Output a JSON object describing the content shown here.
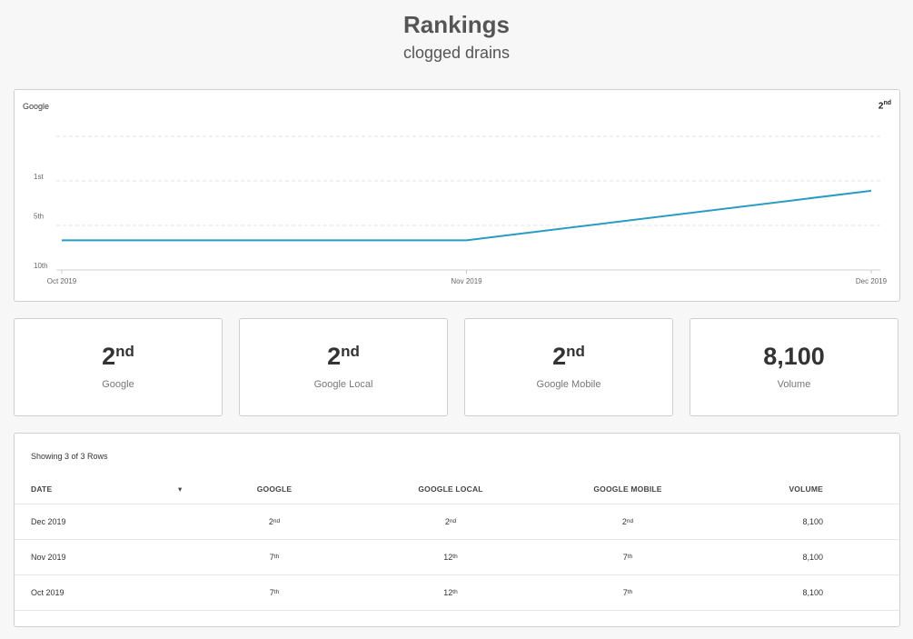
{
  "header": {
    "title": "Rankings",
    "subtitle": "clogged drains"
  },
  "chart": {
    "label_left": "Google",
    "label_right_num": "2",
    "label_right_suffix": "nd"
  },
  "chart_data": {
    "type": "line",
    "x": [
      "Oct 2019",
      "Nov 2019",
      "Dec 2019"
    ],
    "y_ticks": [
      "1st",
      "5th",
      "10th"
    ],
    "series": [
      {
        "values": [
          7,
          7,
          2
        ]
      }
    ],
    "line_color": "#2b9bc2",
    "grid": true
  },
  "stats": [
    {
      "num": "2",
      "suffix": "nd",
      "label": "Google"
    },
    {
      "num": "2",
      "suffix": "nd",
      "label": "Google Local"
    },
    {
      "num": "2",
      "suffix": "nd",
      "label": "Google Mobile"
    },
    {
      "num": "8,100",
      "suffix": "",
      "label": "Volume"
    }
  ],
  "table": {
    "rows_info": "Showing 3 of 3 Rows",
    "sort_icon": "▾",
    "columns": [
      "DATE",
      "GOOGLE",
      "GOOGLE LOCAL",
      "GOOGLE MOBILE",
      "VOLUME"
    ],
    "rows": [
      {
        "date": "Dec 2019",
        "g": "2",
        "g_s": "nd",
        "gl": "2",
        "gl_s": "nd",
        "gm": "2",
        "gm_s": "nd",
        "v": "8,100"
      },
      {
        "date": "Nov 2019",
        "g": "7",
        "g_s": "th",
        "gl": "12",
        "gl_s": "th",
        "gm": "7",
        "gm_s": "th",
        "v": "8,100"
      },
      {
        "date": "Oct 2019",
        "g": "7",
        "g_s": "th",
        "gl": "12",
        "gl_s": "th",
        "gm": "7",
        "gm_s": "th",
        "v": "8,100"
      }
    ]
  }
}
